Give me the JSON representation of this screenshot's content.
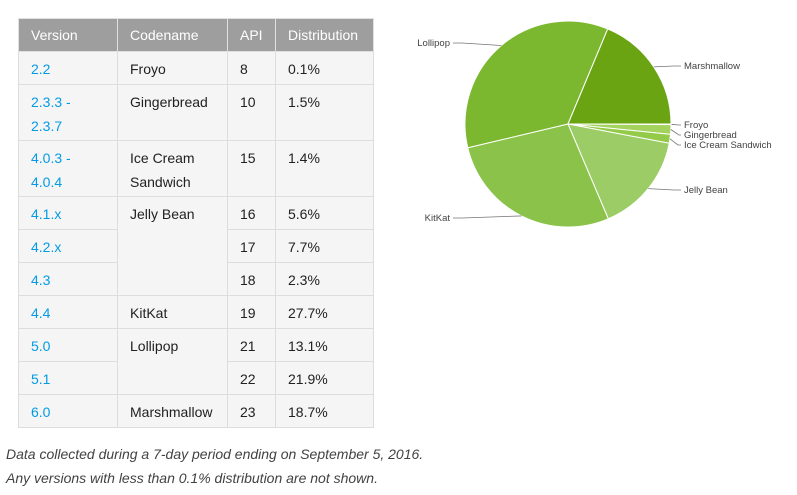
{
  "table": {
    "headers": [
      "Version",
      "Codename",
      "API",
      "Distribution"
    ],
    "rows": [
      {
        "version": "2.2",
        "codename": "Froyo",
        "api": "8",
        "distribution": "0.1%"
      },
      {
        "version": "2.3.3 - 2.3.7",
        "codename": "Gingerbread",
        "api": "10",
        "distribution": "1.5%"
      },
      {
        "version": "4.0.3 - 4.0.4",
        "codename": "Ice Cream Sandwich",
        "api": "15",
        "distribution": "1.4%"
      },
      {
        "version": "4.1.x",
        "codename": "Jelly Bean",
        "api": "16",
        "distribution": "5.6%"
      },
      {
        "version": "4.2.x",
        "codename": "",
        "api": "17",
        "distribution": "7.7%"
      },
      {
        "version": "4.3",
        "codename": "",
        "api": "18",
        "distribution": "2.3%"
      },
      {
        "version": "4.4",
        "codename": "KitKat",
        "api": "19",
        "distribution": "27.7%"
      },
      {
        "version": "5.0",
        "codename": "Lollipop",
        "api": "21",
        "distribution": "13.1%"
      },
      {
        "version": "5.1",
        "codename": "",
        "api": "22",
        "distribution": "21.9%"
      },
      {
        "version": "6.0",
        "codename": "Marshmallow",
        "api": "23",
        "distribution": "18.7%"
      }
    ]
  },
  "footnotes": [
    "Data collected during a 7-day period ending on September 5, 2016.",
    "Any versions with less than 0.1% distribution are not shown."
  ],
  "chart_data": {
    "type": "pie",
    "labels": [
      "Froyo",
      "Gingerbread",
      "Ice Cream Sandwich",
      "Jelly Bean",
      "KitKat",
      "Lollipop",
      "Marshmallow"
    ],
    "values": [
      0.1,
      1.5,
      1.4,
      15.6,
      27.7,
      35.0,
      18.7
    ],
    "colors": [
      "#b3d97a",
      "#a3d25d",
      "#93ca48",
      "#9ccc65",
      "#8bc34a",
      "#7cb82f",
      "#6aa412"
    ]
  }
}
